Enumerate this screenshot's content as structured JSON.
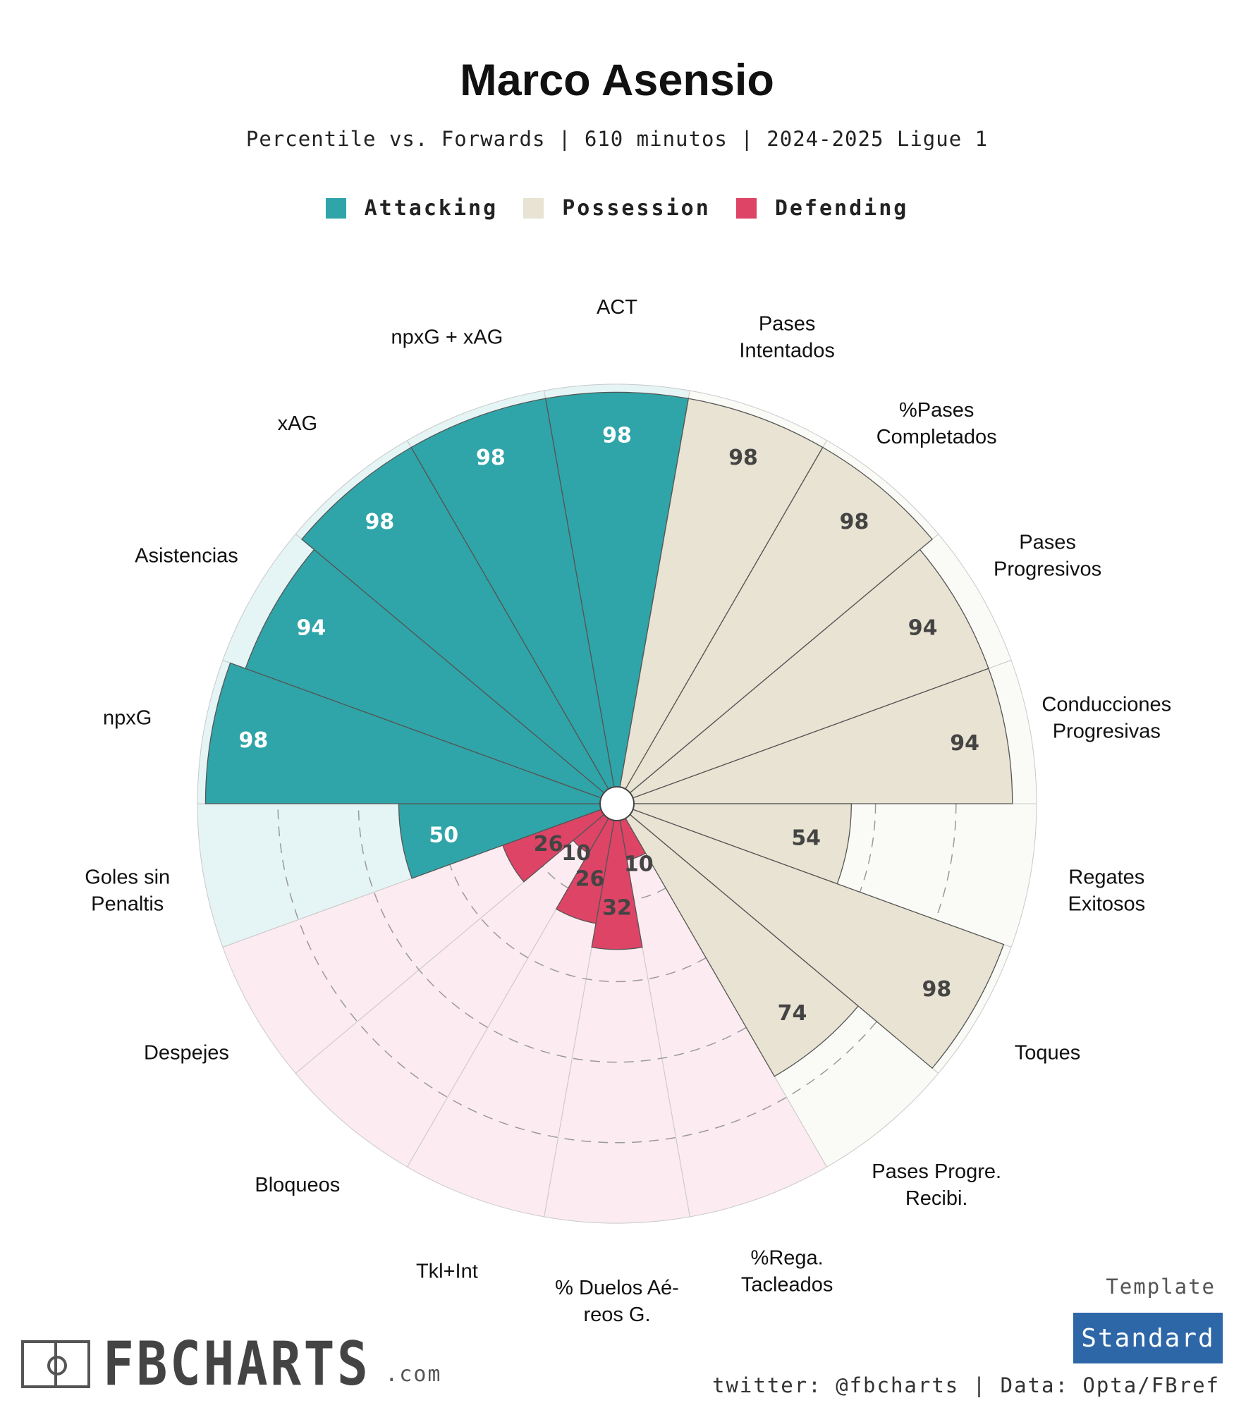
{
  "header": {
    "title": "Marco Asensio",
    "subtitle": "Percentile vs. Forwards | 610 minutos | 2024-2025 Ligue 1"
  },
  "legend": [
    {
      "label": "Attacking",
      "color": "#2fa5a9"
    },
    {
      "label": "Possession",
      "color": "#e8e3d2"
    },
    {
      "label": "Defending",
      "color": "#dd4466"
    }
  ],
  "chart_data": {
    "type": "radar-bar",
    "title": "Marco Asensio",
    "subtitle": "Percentile vs. Forwards | 610 minutos | 2024-2025 Ligue 1",
    "range": [
      0,
      100
    ],
    "grid_rings": [
      20,
      40,
      60,
      80
    ],
    "colors": {
      "Attacking": "#2fa5a9",
      "Possession": "#e8e3d2",
      "Defending": "#dd4466",
      "Attacking_bg": "#e5f4f4",
      "Possession_bg": "#fafaf7",
      "Defending_bg": "#fcebf0"
    },
    "metrics": [
      {
        "name": "ACT",
        "group": "Attacking",
        "value": 98
      },
      {
        "name": "Pases\nIntentados",
        "group": "Possession",
        "value": 98
      },
      {
        "name": "%Pases\nCompletados",
        "group": "Possession",
        "value": 98
      },
      {
        "name": "Pases\nProgresivos",
        "group": "Possession",
        "value": 94
      },
      {
        "name": "Conducciones\nProgresivas",
        "group": "Possession",
        "value": 94
      },
      {
        "name": "Regates\nExitosos",
        "group": "Possession",
        "value": 54
      },
      {
        "name": "Toques",
        "group": "Possession",
        "value": 98
      },
      {
        "name": "Pases Progre.\nRecibi.",
        "group": "Possession",
        "value": 74
      },
      {
        "name": "%Rega.\nTacleados",
        "group": "Defending",
        "value": 10
      },
      {
        "name": "% Duelos Aé-\nreos G.",
        "group": "Defending",
        "value": 32
      },
      {
        "name": "Tkl+Int",
        "group": "Defending",
        "value": 26
      },
      {
        "name": "Bloqueos",
        "group": "Defending",
        "value": 10
      },
      {
        "name": "Despejes",
        "group": "Defending",
        "value": 26
      },
      {
        "name": "Goles sin\nPenaltis",
        "group": "Attacking",
        "value": 50
      },
      {
        "name": "npxG",
        "group": "Attacking",
        "value": 98
      },
      {
        "name": "Asistencias",
        "group": "Attacking",
        "value": 94
      },
      {
        "name": "xAG",
        "group": "Attacking",
        "value": 98
      },
      {
        "name": "npxG + xAG",
        "group": "Attacking",
        "value": 98
      }
    ]
  },
  "footer": {
    "template_label": "Template",
    "template_value": "Standard",
    "credits": "twitter: @fbcharts | Data: Opta/FBref",
    "logo_text": "FBCHARTS",
    "logo_suffix": ".com"
  }
}
